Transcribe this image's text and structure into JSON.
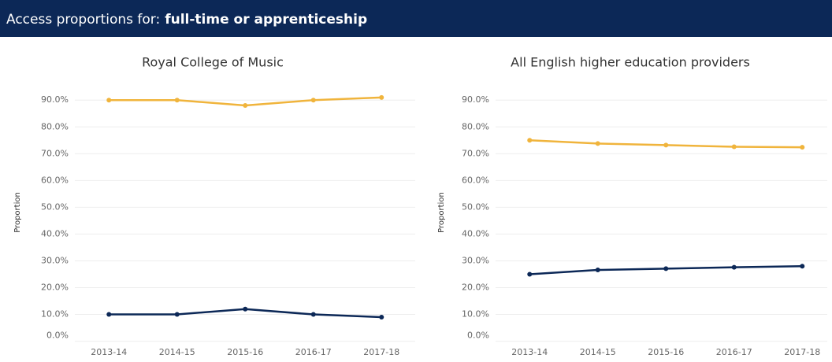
{
  "header": {
    "prefix": "Access proportions for:",
    "selection": "full-time or apprenticeship"
  },
  "chart_data": [
    {
      "type": "line",
      "title": "Royal College of Music",
      "y_label": "Proportion",
      "categories": [
        "2013-14",
        "2014-15",
        "2015-16",
        "2016-17",
        "2017-18"
      ],
      "series": [
        {
          "color": "#f0b43c",
          "values": [
            90,
            90,
            88,
            90,
            91
          ]
        },
        {
          "color": "#0c2857",
          "values": [
            10,
            10,
            12,
            10,
            9
          ]
        }
      ],
      "ylim": [
        -1,
        98
      ],
      "yticks": [
        {
          "value": 0,
          "label": "0.0%"
        },
        {
          "value": 10,
          "label": "10.0%"
        },
        {
          "value": 20,
          "label": "20.0%"
        },
        {
          "value": 30,
          "label": "30.0%"
        },
        {
          "value": 40,
          "label": "40.0%"
        },
        {
          "value": 50,
          "label": "50.0%"
        },
        {
          "value": 60,
          "label": "60.0%"
        },
        {
          "value": 70,
          "label": "70.0%"
        },
        {
          "value": 80,
          "label": "80.0%"
        },
        {
          "value": 90,
          "label": "90.0%"
        }
      ],
      "grid": true
    },
    {
      "type": "line",
      "title": "All English higher education providers",
      "y_label": "Proportion",
      "categories": [
        "2013-14",
        "2014-15",
        "2015-16",
        "2016-17",
        "2017-18"
      ],
      "series": [
        {
          "color": "#f0b43c",
          "values": [
            75,
            73.8,
            73.2,
            72.6,
            72.4
          ]
        },
        {
          "color": "#0c2857",
          "values": [
            25,
            26.6,
            27.1,
            27.6,
            28
          ]
        }
      ],
      "ylim": [
        -1,
        98
      ],
      "yticks": [
        {
          "value": 0,
          "label": "0.0%"
        },
        {
          "value": 10,
          "label": "10.0%"
        },
        {
          "value": 20,
          "label": "20.0%"
        },
        {
          "value": 30,
          "label": "30.0%"
        },
        {
          "value": 40,
          "label": "40.0%"
        },
        {
          "value": 50,
          "label": "50.0%"
        },
        {
          "value": 60,
          "label": "60.0%"
        },
        {
          "value": 70,
          "label": "70.0%"
        },
        {
          "value": 80,
          "label": "80.0%"
        },
        {
          "value": 90,
          "label": "90.0%"
        }
      ],
      "grid": true
    }
  ]
}
